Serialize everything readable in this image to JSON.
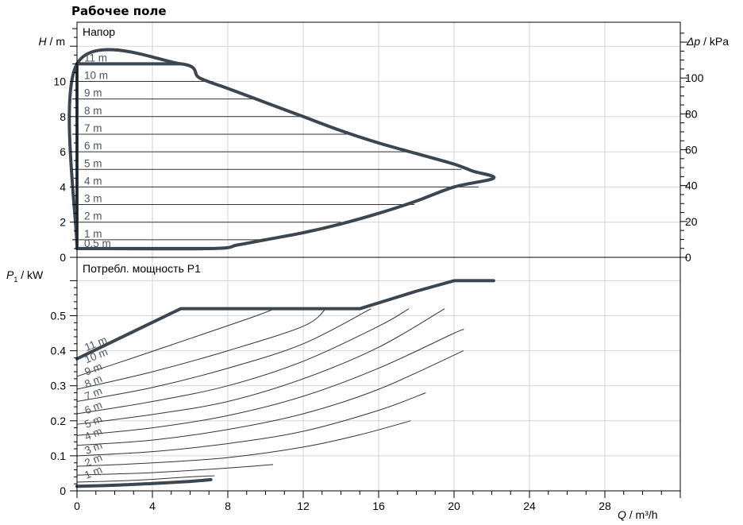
{
  "title": "Рабочее поле",
  "chart_data": [
    {
      "type": "line",
      "panel_label": "Напор",
      "ylabel": {
        "var": "H",
        "unit": " / m"
      },
      "y2label": {
        "var": "Δp",
        "unit": " / kPa"
      },
      "xlim": [
        0,
        32
      ],
      "ylim": [
        0,
        13
      ],
      "y2lim": [
        0,
        127.5
      ],
      "yticks": [
        0,
        2,
        4,
        6,
        8,
        10
      ],
      "y2ticks": [
        0,
        20,
        40,
        60,
        80,
        100
      ],
      "envelope": [
        [
          0,
          0.5
        ],
        [
          7.1,
          0.5
        ],
        [
          8.5,
          0.7
        ],
        [
          10,
          1.0
        ],
        [
          12,
          1.4
        ],
        [
          14,
          1.9
        ],
        [
          16,
          2.5
        ],
        [
          18,
          3.2
        ],
        [
          20,
          4.0
        ],
        [
          22.1,
          4.5
        ],
        [
          21,
          4.9
        ],
        [
          20,
          5.3
        ],
        [
          18,
          5.9
        ],
        [
          16,
          6.5
        ],
        [
          14,
          7.2
        ],
        [
          12,
          8.0
        ],
        [
          10,
          8.8
        ],
        [
          8,
          9.6
        ],
        [
          6.5,
          10.2
        ],
        [
          5.5,
          11.0
        ],
        [
          0,
          11.0
        ],
        [
          0,
          0.5
        ]
      ],
      "speed_lines": [
        {
          "label": "11 m",
          "H": 11,
          "x_end": 5.5
        },
        {
          "label": "10 m",
          "H": 10,
          "x_end": 7.2
        },
        {
          "label": "9 m",
          "H": 9,
          "x_end": 9.5
        },
        {
          "label": "8 m",
          "H": 8,
          "x_end": 12.0
        },
        {
          "label": "7 m",
          "H": 7,
          "x_end": 14.3
        },
        {
          "label": "6 m",
          "H": 6,
          "x_end": 17.8
        },
        {
          "label": "5 m",
          "H": 5,
          "x_end": 20.4
        },
        {
          "label": "4 m",
          "H": 4,
          "x_end": 21.3
        },
        {
          "label": "3 m",
          "H": 3,
          "x_end": 17.9
        },
        {
          "label": "2 m",
          "H": 2,
          "x_end": 14.0
        },
        {
          "label": "1 m",
          "H": 1,
          "x_end": 10.0
        },
        {
          "label": "0.5 m",
          "H": 0.5,
          "x_end": 7.1
        }
      ]
    },
    {
      "type": "line",
      "panel_label": "Потребл. мощность P1",
      "ylabel": {
        "var": "P",
        "sub": "1",
        "unit": " / kW"
      },
      "xlabel": {
        "var": "Q",
        "unit": " / m³/h"
      },
      "xlim": [
        0,
        32
      ],
      "ylim": [
        0,
        0.63
      ],
      "xticks": [
        0,
        4,
        8,
        12,
        16,
        20,
        24,
        28
      ],
      "yticks": [
        0,
        0.1,
        0.2,
        0.3,
        0.4,
        0.5
      ],
      "yticks_labels": [
        "0",
        "0.1",
        "0.2",
        "0.3",
        "0.4",
        "0.5"
      ],
      "max_curve": [
        [
          0,
          0.377
        ],
        [
          5.5,
          0.52
        ],
        [
          15,
          0.52
        ],
        [
          18,
          0.57
        ],
        [
          20,
          0.6
        ],
        [
          22.1,
          0.6
        ]
      ],
      "min_curve": [
        [
          0,
          0.013
        ],
        [
          2,
          0.016
        ],
        [
          4,
          0.021
        ],
        [
          6,
          0.027
        ],
        [
          7.1,
          0.032
        ]
      ],
      "speed_curves": [
        {
          "label": "10 m",
          "points": [
            [
              0,
              0.327
            ],
            [
              3,
              0.38
            ],
            [
              6,
              0.435
            ],
            [
              9,
              0.49
            ],
            [
              10.5,
              0.52
            ]
          ]
        },
        {
          "label": "9 m",
          "points": [
            [
              0,
              0.29
            ],
            [
              4,
              0.34
            ],
            [
              8,
              0.4
            ],
            [
              12,
              0.47
            ],
            [
              13.2,
              0.52
            ]
          ]
        },
        {
          "label": "8 m",
          "points": [
            [
              0,
              0.255
            ],
            [
              4,
              0.295
            ],
            [
              8,
              0.35
            ],
            [
              12,
              0.42
            ],
            [
              15.6,
              0.52
            ]
          ]
        },
        {
          "label": "7 m",
          "points": [
            [
              0,
              0.22
            ],
            [
              4,
              0.255
            ],
            [
              8,
              0.3
            ],
            [
              12,
              0.37
            ],
            [
              16,
              0.47
            ],
            [
              17.6,
              0.52
            ]
          ]
        },
        {
          "label": "6 m",
          "points": [
            [
              0,
              0.19
            ],
            [
              4,
              0.218
            ],
            [
              8,
              0.255
            ],
            [
              12,
              0.32
            ],
            [
              16,
              0.41
            ],
            [
              19.5,
              0.52
            ]
          ]
        },
        {
          "label": "5 m",
          "points": [
            [
              0,
              0.158
            ],
            [
              4,
              0.18
            ],
            [
              8,
              0.215
            ],
            [
              12,
              0.27
            ],
            [
              16,
              0.35
            ],
            [
              20,
              0.45
            ],
            [
              20.5,
              0.46
            ]
          ]
        },
        {
          "label": "4 m",
          "points": [
            [
              0,
              0.13
            ],
            [
              4,
              0.145
            ],
            [
              8,
              0.175
            ],
            [
              12,
              0.22
            ],
            [
              16,
              0.29
            ],
            [
              20.5,
              0.4
            ]
          ]
        },
        {
          "label": "3 m",
          "points": [
            [
              0,
              0.1
            ],
            [
              4,
              0.112
            ],
            [
              8,
              0.135
            ],
            [
              12,
              0.17
            ],
            [
              16,
              0.23
            ],
            [
              18.5,
              0.28
            ]
          ]
        },
        {
          "label": "2 m",
          "points": [
            [
              0,
              0.07
            ],
            [
              4,
              0.08
            ],
            [
              8,
              0.095
            ],
            [
              12,
              0.125
            ],
            [
              15,
              0.16
            ],
            [
              17.7,
              0.2
            ]
          ]
        },
        {
          "label": "1 m",
          "points": [
            [
              0,
              0.045
            ],
            [
              4,
              0.052
            ],
            [
              8,
              0.065
            ],
            [
              10.4,
              0.075
            ]
          ]
        },
        {
          "label": "",
          "points": [
            [
              0,
              0.025
            ],
            [
              3,
              0.03
            ],
            [
              6,
              0.04
            ],
            [
              7.3,
              0.043
            ]
          ]
        }
      ],
      "curve_labels": [
        "11 m",
        "10 m",
        "9 m",
        "8 m",
        "7 m",
        "6 m",
        "5 m",
        "4 m",
        "3 m",
        "2 m",
        "1 m"
      ]
    }
  ],
  "colors": {
    "envelope": "#3c4650",
    "grid": "#d6d6d6",
    "label": "#4b5560"
  }
}
